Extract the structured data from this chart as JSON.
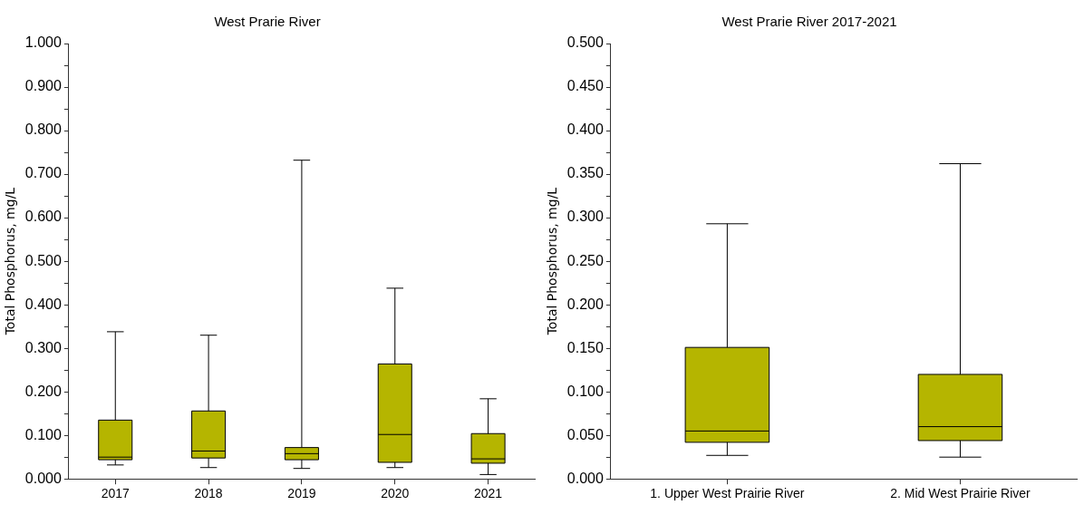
{
  "chart_data": [
    {
      "type": "box",
      "title": "West Prarie River",
      "ylabel": "Total Phosphorus, mg/L",
      "categories": [
        "2017",
        "2018",
        "2019",
        "2020",
        "2021"
      ],
      "series": [
        {
          "color": "#b5b500",
          "boxes": [
            {
              "low": 0.032,
              "q1": 0.044,
              "median": 0.05,
              "q3": 0.135,
              "high": 0.338
            },
            {
              "low": 0.026,
              "q1": 0.048,
              "median": 0.064,
              "q3": 0.156,
              "high": 0.33
            },
            {
              "low": 0.024,
              "q1": 0.044,
              "median": 0.058,
              "q3": 0.072,
              "high": 0.732
            },
            {
              "low": 0.026,
              "q1": 0.038,
              "median": 0.102,
              "q3": 0.264,
              "high": 0.438
            },
            {
              "low": 0.01,
              "q1": 0.036,
              "median": 0.046,
              "q3": 0.104,
              "high": 0.184
            }
          ]
        }
      ],
      "ylim": [
        0,
        1
      ],
      "yticks": [
        {
          "value": 0,
          "label": "0.000"
        },
        {
          "value": 0.05,
          "label": null
        },
        {
          "value": 0.1,
          "label": "0.100"
        },
        {
          "value": 0.15,
          "label": null
        },
        {
          "value": 0.2,
          "label": "0.200"
        },
        {
          "value": 0.25,
          "label": null
        },
        {
          "value": 0.3,
          "label": "0.300"
        },
        {
          "value": 0.35,
          "label": null
        },
        {
          "value": 0.4,
          "label": "0.400"
        },
        {
          "value": 0.45,
          "label": null
        },
        {
          "value": 0.5,
          "label": "0.500"
        },
        {
          "value": 0.55,
          "label": null
        },
        {
          "value": 0.6,
          "label": "0.600"
        },
        {
          "value": 0.65,
          "label": null
        },
        {
          "value": 0.7,
          "label": "0.700"
        },
        {
          "value": 0.75,
          "label": null
        },
        {
          "value": 0.8,
          "label": "0.800"
        },
        {
          "value": 0.85,
          "label": null
        },
        {
          "value": 0.9,
          "label": "0.900"
        },
        {
          "value": 0.95,
          "label": null
        },
        {
          "value": 1,
          "label": "1.000"
        }
      ],
      "grid": false,
      "legend": false
    },
    {
      "type": "box",
      "title": "West Prarie River 2017-2021",
      "ylabel": "Total Phosphorus, mg/L",
      "categories": [
        "1. Upper West Prairie River",
        "2. Mid West Prairie River"
      ],
      "series": [
        {
          "color": "#b5b500",
          "boxes": [
            {
              "low": 0.027,
              "q1": 0.042,
              "median": 0.055,
              "q3": 0.151,
              "high": 0.293
            },
            {
              "low": 0.025,
              "q1": 0.044,
              "median": 0.06,
              "q3": 0.12,
              "high": 0.362
            }
          ]
        }
      ],
      "ylim": [
        0,
        0.5
      ],
      "yticks": [
        {
          "value": 0,
          "label": "0.000"
        },
        {
          "value": 0.025,
          "label": null
        },
        {
          "value": 0.05,
          "label": "0.050"
        },
        {
          "value": 0.075,
          "label": null
        },
        {
          "value": 0.1,
          "label": "0.100"
        },
        {
          "value": 0.125,
          "label": null
        },
        {
          "value": 0.15,
          "label": "0.150"
        },
        {
          "value": 0.175,
          "label": null
        },
        {
          "value": 0.2,
          "label": "0.200"
        },
        {
          "value": 0.225,
          "label": null
        },
        {
          "value": 0.25,
          "label": "0.250"
        },
        {
          "value": 0.275,
          "label": null
        },
        {
          "value": 0.3,
          "label": "0.300"
        },
        {
          "value": 0.325,
          "label": null
        },
        {
          "value": 0.35,
          "label": "0.350"
        },
        {
          "value": 0.375,
          "label": null
        },
        {
          "value": 0.4,
          "label": "0.400"
        },
        {
          "value": 0.425,
          "label": null
        },
        {
          "value": 0.45,
          "label": "0.450"
        },
        {
          "value": 0.475,
          "label": null
        },
        {
          "value": 0.5,
          "label": "0.500"
        }
      ],
      "grid": false,
      "legend": false
    }
  ]
}
